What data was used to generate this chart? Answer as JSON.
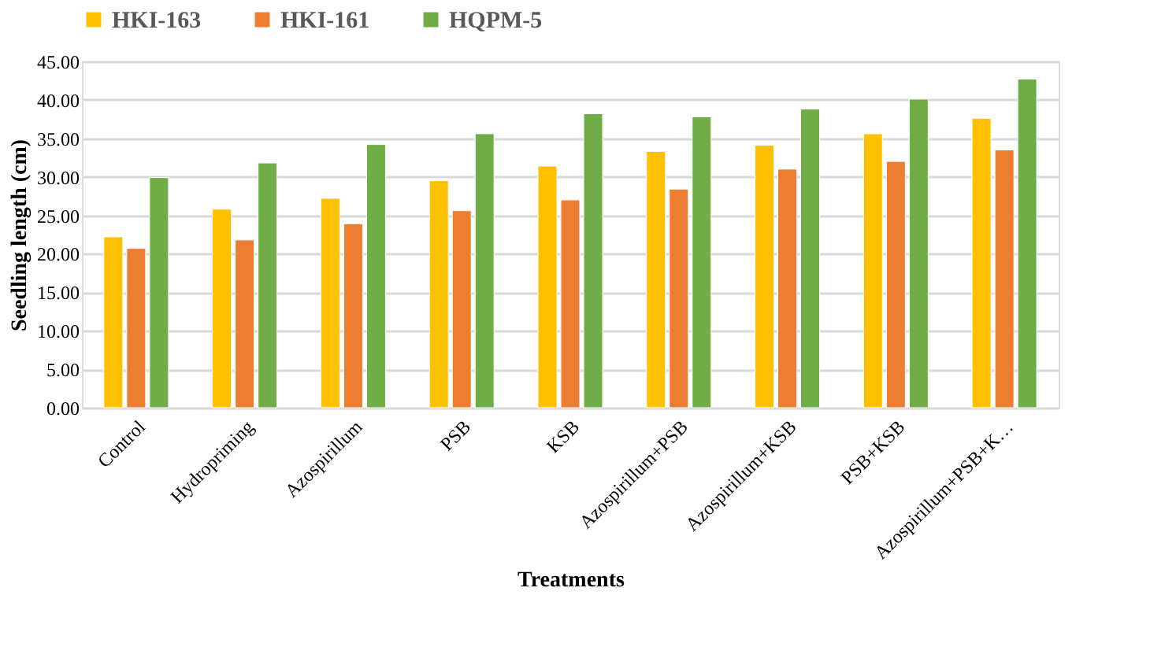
{
  "chart_data": {
    "type": "bar",
    "xlabel": "Treatments",
    "ylabel": "Seedling length (cm)",
    "categories": [
      "Control",
      "Hydropriming",
      "Azospirillum",
      "PSB",
      "KSB",
      "Azospirillum+PSB",
      "Azospirillum+KSB",
      "PSB+KSB",
      "Azospirillum+PSB+K…"
    ],
    "series": [
      {
        "name": "HKI-163",
        "color": "#ffc000",
        "values": [
          22.2,
          25.8,
          27.2,
          29.5,
          31.4,
          33.3,
          34.1,
          35.6,
          37.6
        ]
      },
      {
        "name": "HKI-161",
        "color": "#ed7d31",
        "values": [
          20.7,
          21.8,
          23.9,
          25.6,
          27.0,
          28.4,
          31.0,
          32.0,
          33.5
        ]
      },
      {
        "name": "HQPM-5",
        "color": "#70ad47",
        "values": [
          29.9,
          31.8,
          34.2,
          35.6,
          38.2,
          37.8,
          38.8,
          40.1,
          42.7
        ]
      }
    ],
    "ylim": [
      0,
      45
    ],
    "yticks": [
      {
        "value": 0,
        "label": "0.00"
      },
      {
        "value": 5,
        "label": "5.00"
      },
      {
        "value": 10,
        "label": "10.00"
      },
      {
        "value": 15,
        "label": "15.00"
      },
      {
        "value": 20,
        "label": "20.00"
      },
      {
        "value": 25,
        "label": "25.00"
      },
      {
        "value": 30,
        "label": "30.00"
      },
      {
        "value": 35,
        "label": "35.00"
      },
      {
        "value": 40,
        "label": "40.00"
      },
      {
        "value": 45,
        "label": "45.00"
      }
    ],
    "grid": "y",
    "legend": "top"
  }
}
